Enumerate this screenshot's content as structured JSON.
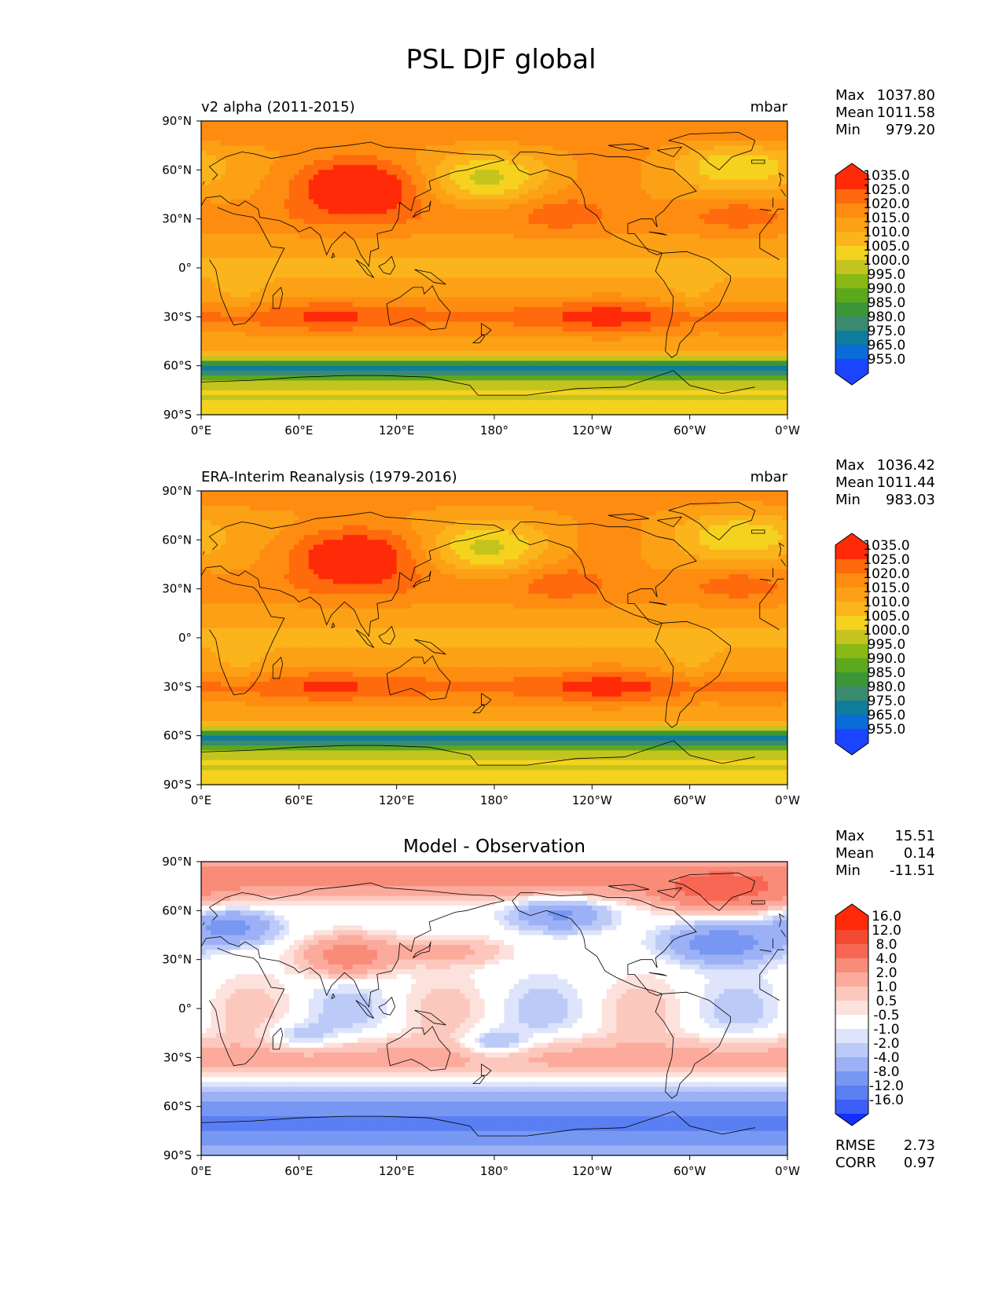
{
  "figure_title": "PSL DJF global",
  "colors": {
    "psl_levels": [
      "#1a44ff",
      "#0b6bd9",
      "#107c9c",
      "#3a8a70",
      "#3c9636",
      "#5ca81c",
      "#8ab814",
      "#c4c41e",
      "#f5d21e",
      "#fbb41c",
      "#fca015",
      "#fd8c10",
      "#fe6a0c",
      "#ff2a08"
    ],
    "diff_levels": [
      "#1230ff",
      "#3d5ef7",
      "#5a7ff2",
      "#7897f3",
      "#9cb0f6",
      "#bccaf8",
      "#dde4fb",
      "#ffffff",
      "#fde1dc",
      "#fcc8be",
      "#fbaa9c",
      "#f98b79",
      "#f76754",
      "#f24a32",
      "#ff2a08"
    ],
    "land": "#000000"
  },
  "chart_data": [
    {
      "type": "heatmap",
      "title": "v2 alpha (2011-2015)",
      "units": "mbar",
      "field": "psl_model",
      "stats": {
        "max_label": "Max",
        "max": "1037.80",
        "mean_label": "Mean",
        "mean": "1011.58",
        "min_label": "Min",
        "min": "979.20"
      },
      "colorbar_labels": [
        "1035.0",
        "1025.0",
        "1020.0",
        "1015.0",
        "1010.0",
        "1005.0",
        "1000.0",
        "995.0",
        "990.0",
        "985.0",
        "980.0",
        "975.0",
        "965.0",
        "955.0"
      ],
      "xticks": [
        "0°E",
        "60°E",
        "120°E",
        "180°",
        "120°W",
        "60°W",
        "0°W"
      ],
      "yticks": [
        "90°N",
        "60°N",
        "30°N",
        "0°",
        "30°S",
        "60°S",
        "90°S"
      ],
      "xlim": [
        0,
        360
      ],
      "ylim": [
        -90,
        90
      ]
    },
    {
      "type": "heatmap",
      "title": "ERA-Interim Reanalysis (1979-2016)",
      "units": "mbar",
      "field": "psl_obs",
      "stats": {
        "max_label": "Max",
        "max": "1036.42",
        "mean_label": "Mean",
        "mean": "1011.44",
        "min_label": "Min",
        "min": "983.03"
      },
      "colorbar_labels": [
        "1035.0",
        "1025.0",
        "1020.0",
        "1015.0",
        "1010.0",
        "1005.0",
        "1000.0",
        "995.0",
        "990.0",
        "985.0",
        "980.0",
        "975.0",
        "965.0",
        "955.0"
      ],
      "xticks": [
        "0°E",
        "60°E",
        "120°E",
        "180°",
        "120°W",
        "60°W",
        "0°W"
      ],
      "yticks": [
        "90°N",
        "60°N",
        "30°N",
        "0°",
        "30°S",
        "60°S",
        "90°S"
      ],
      "xlim": [
        0,
        360
      ],
      "ylim": [
        -90,
        90
      ]
    },
    {
      "type": "heatmap",
      "title": "Model - Observation",
      "units": "",
      "field": "psl_diff",
      "stats": {
        "max_label": "Max",
        "max": "15.51",
        "mean_label": "Mean",
        "mean": "0.14",
        "min_label": "Min",
        "min": "-11.51"
      },
      "colorbar_labels": [
        "16.0",
        "12.0",
        "8.0",
        "4.0",
        "2.0",
        "1.0",
        "0.5",
        "-0.5",
        "-1.0",
        "-2.0",
        "-4.0",
        "-8.0",
        "-12.0",
        "-16.0"
      ],
      "extra_stats": {
        "rmse_label": "RMSE",
        "rmse": "2.73",
        "corr_label": "CORR",
        "corr": "0.97"
      },
      "xticks": [
        "0°E",
        "60°E",
        "120°E",
        "180°",
        "120°W",
        "60°W",
        "0°W"
      ],
      "yticks": [
        "90°N",
        "60°N",
        "30°N",
        "0°",
        "30°S",
        "60°S",
        "90°S"
      ],
      "xlim": [
        0,
        360
      ],
      "ylim": [
        -90,
        90
      ]
    }
  ]
}
